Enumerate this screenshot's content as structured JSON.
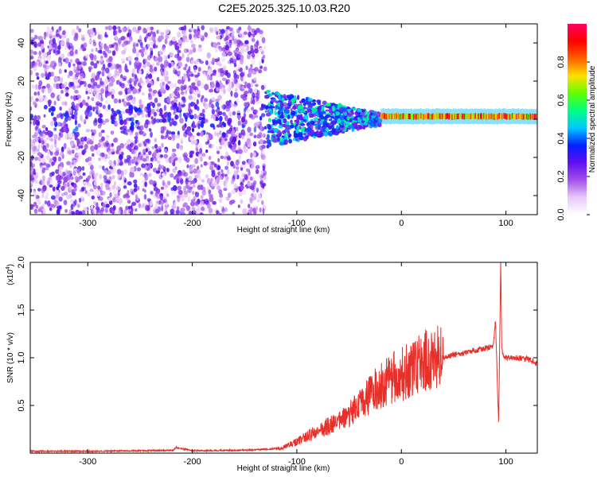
{
  "title": "C2E5.2025.325.10.03.R20",
  "chart_data": [
    {
      "type": "heatmap",
      "xlabel": "Height of straight line (km)",
      "ylabel": "Frequency (Hz)",
      "xlim": [
        -355,
        130
      ],
      "ylim": [
        -50,
        50
      ],
      "xticks": [
        -300,
        -200,
        -100,
        0,
        100
      ],
      "yticks": [
        -40,
        -20,
        0,
        20,
        40
      ],
      "colorbar": {
        "label": "Normalized spectral amplitude",
        "range": [
          0,
          1
        ],
        "ticks": [
          0.0,
          0.2,
          0.4,
          0.6,
          0.8
        ],
        "colors": [
          "#ffffff",
          "#e8c8f8",
          "#a050e8",
          "#6010f0",
          "#0020ff",
          "#00c8ff",
          "#00ff80",
          "#60ff00",
          "#ffe000",
          "#ff6000",
          "#ff0000",
          "#ff0060"
        ]
      },
      "regions": [
        {
          "name": "noise",
          "x_range": [
            -355,
            -130
          ],
          "freq_range": [
            -50,
            48
          ],
          "amplitude_range": [
            0.05,
            0.3
          ]
        },
        {
          "name": "transition",
          "x_range": [
            -130,
            -20
          ],
          "freq_range": [
            -10,
            10
          ],
          "amplitude_range": [
            0.2,
            0.55
          ]
        },
        {
          "name": "signal",
          "x_range": [
            -20,
            130
          ],
          "center_freq": 1.5,
          "amplitude_range": [
            0.6,
            1.0
          ]
        }
      ]
    },
    {
      "type": "line",
      "xlabel": "Height of straight line (km)",
      "ylabel": "SNR (10 * v/v)",
      "y_multiplier": "(x10",
      "y_multiplier_exp": "4",
      "multiplier_close": ")",
      "xlim": [
        -355,
        130
      ],
      "ylim": [
        0,
        2.0
      ],
      "xticks": [
        -300,
        -200,
        -100,
        0,
        100
      ],
      "yticks": [
        0.5,
        1.0,
        1.5,
        2.0
      ],
      "ytick_labels": [
        "0.5",
        "1.0",
        "1.5",
        "2.0"
      ],
      "color": "#e8302a",
      "series": [
        {
          "x": [
            -355,
            -300,
            -250,
            -218,
            -216,
            -200,
            -150,
            -115,
            -100,
            -90,
            -80,
            -70,
            -60,
            -50,
            -40,
            -30,
            -20,
            -10,
            0,
            10,
            20,
            30,
            40,
            50,
            60,
            70,
            80,
            88,
            90,
            93,
            95,
            96,
            97,
            100,
            110,
            120,
            130
          ],
          "y": [
            0.02,
            0.02,
            0.025,
            0.03,
            0.06,
            0.025,
            0.03,
            0.05,
            0.12,
            0.18,
            0.22,
            0.28,
            0.33,
            0.4,
            0.5,
            0.62,
            0.72,
            0.78,
            0.82,
            0.88,
            0.96,
            0.99,
            1.0,
            1.03,
            1.05,
            1.08,
            1.1,
            1.12,
            1.4,
            0.3,
            2.0,
            1.1,
            1.02,
            1.0,
            1.0,
            0.99,
            0.94
          ]
        }
      ]
    }
  ]
}
